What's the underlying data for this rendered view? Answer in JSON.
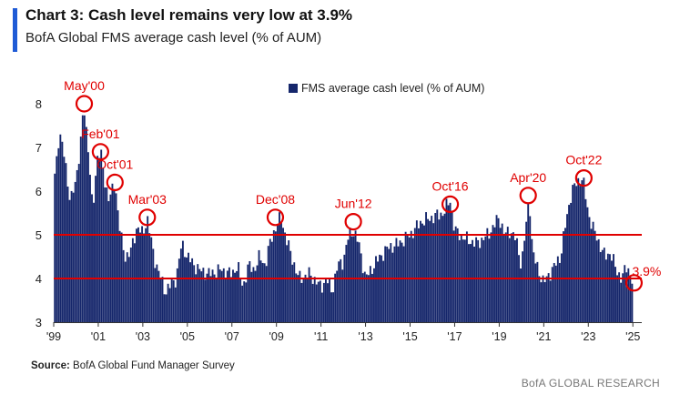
{
  "header": {
    "title": "Chart 3: Cash level remains very low at 3.9%",
    "subtitle": "BofA Global FMS average cash level (% of AUM)"
  },
  "footer": {
    "source_label": "Source:",
    "source_text": "BofA Global Fund Manager Survey",
    "brand": "BofA GLOBAL RESEARCH"
  },
  "colors": {
    "bar": "#15266b",
    "reference_line": "#e00000",
    "annotation": "#e00000",
    "accent": "#1f5bd6"
  },
  "chart_data": {
    "type": "bar",
    "title": "Chart 3: Cash level remains very low at 3.9%",
    "subtitle": "BofA Global FMS average cash level (% of AUM)",
    "legend": {
      "label": "FMS average cash level (% of AUM)",
      "position": "top-center"
    },
    "xlabel": "",
    "ylabel": "",
    "ylim": [
      3,
      8.5
    ],
    "yticks": [
      3,
      4,
      5,
      6,
      7,
      8
    ],
    "xlim": [
      1999.0,
      2025.4
    ],
    "xticks": [
      {
        "label": "'99",
        "x": 1999.0
      },
      {
        "label": "'01",
        "x": 2001.0
      },
      {
        "label": "'03",
        "x": 2003.0
      },
      {
        "label": "'05",
        "x": 2005.0
      },
      {
        "label": "'07",
        "x": 2007.0
      },
      {
        "label": "'09",
        "x": 2009.0
      },
      {
        "label": "'11",
        "x": 2011.0
      },
      {
        "label": "'13",
        "x": 2013.0
      },
      {
        "label": "'15",
        "x": 2015.0
      },
      {
        "label": "'17",
        "x": 2017.0
      },
      {
        "label": "'19",
        "x": 2019.0
      },
      {
        "label": "'21",
        "x": 2021.0
      },
      {
        "label": "'23",
        "x": 2023.0
      },
      {
        "label": "'25",
        "x": 2025.0
      }
    ],
    "reference_lines": [
      5.0,
      4.0
    ],
    "anchors": [
      [
        1999.05,
        6.4
      ],
      [
        1999.25,
        7.3
      ],
      [
        1999.5,
        6.8
      ],
      [
        1999.75,
        5.7
      ],
      [
        2000.0,
        6.3
      ],
      [
        2000.2,
        7.0
      ],
      [
        2000.35,
        8.0
      ],
      [
        2000.55,
        7.0
      ],
      [
        2000.75,
        5.5
      ],
      [
        2000.95,
        6.8
      ],
      [
        2001.1,
        6.9
      ],
      [
        2001.3,
        6.2
      ],
      [
        2001.5,
        5.8
      ],
      [
        2001.75,
        6.2
      ],
      [
        2002.0,
        5.0
      ],
      [
        2002.2,
        4.5
      ],
      [
        2002.45,
        4.6
      ],
      [
        2002.75,
        5.2
      ],
      [
        2003.0,
        5.0
      ],
      [
        2003.2,
        5.4
      ],
      [
        2003.5,
        4.5
      ],
      [
        2003.75,
        4.1
      ],
      [
        2004.0,
        3.7
      ],
      [
        2004.5,
        4.0
      ],
      [
        2004.75,
        4.8
      ],
      [
        2005.0,
        4.5
      ],
      [
        2005.5,
        4.2
      ],
      [
        2006.0,
        4.1
      ],
      [
        2006.5,
        4.2
      ],
      [
        2007.0,
        4.1
      ],
      [
        2007.25,
        4.3
      ],
      [
        2007.5,
        3.8
      ],
      [
        2007.75,
        4.3
      ],
      [
        2008.0,
        4.2
      ],
      [
        2008.25,
        4.5
      ],
      [
        2008.5,
        4.3
      ],
      [
        2008.75,
        4.9
      ],
      [
        2009.0,
        5.2
      ],
      [
        2009.2,
        5.4
      ],
      [
        2009.5,
        4.8
      ],
      [
        2010.0,
        4.0
      ],
      [
        2010.5,
        4.1
      ],
      [
        2011.0,
        3.8
      ],
      [
        2011.25,
        4.0
      ],
      [
        2011.5,
        3.7
      ],
      [
        2011.75,
        4.3
      ],
      [
        2012.0,
        4.4
      ],
      [
        2012.25,
        5.0
      ],
      [
        2012.45,
        5.1
      ],
      [
        2012.7,
        4.8
      ],
      [
        2013.0,
        4.0
      ],
      [
        2013.5,
        4.4
      ],
      [
        2014.0,
        4.7
      ],
      [
        2014.5,
        4.8
      ],
      [
        2015.0,
        5.0
      ],
      [
        2015.5,
        5.3
      ],
      [
        2016.0,
        5.4
      ],
      [
        2016.5,
        5.5
      ],
      [
        2016.8,
        5.8
      ],
      [
        2017.0,
        5.1
      ],
      [
        2017.5,
        4.9
      ],
      [
        2018.0,
        4.8
      ],
      [
        2018.5,
        5.0
      ],
      [
        2019.0,
        5.4
      ],
      [
        2019.25,
        5.0
      ],
      [
        2019.5,
        5.1
      ],
      [
        2019.75,
        4.9
      ],
      [
        2020.0,
        4.3
      ],
      [
        2020.25,
        5.4
      ],
      [
        2020.35,
        5.9
      ],
      [
        2020.5,
        4.6
      ],
      [
        2020.75,
        4.2
      ],
      [
        2021.0,
        3.9
      ],
      [
        2021.5,
        4.3
      ],
      [
        2021.75,
        4.5
      ],
      [
        2022.0,
        5.3
      ],
      [
        2022.25,
        6.0
      ],
      [
        2022.5,
        6.2
      ],
      [
        2022.75,
        6.3
      ],
      [
        2023.0,
        5.5
      ],
      [
        2023.25,
        5.1
      ],
      [
        2023.5,
        4.8
      ],
      [
        2023.75,
        4.5
      ],
      [
        2024.0,
        4.6
      ],
      [
        2024.25,
        4.2
      ],
      [
        2024.5,
        4.0
      ],
      [
        2024.75,
        4.3
      ],
      [
        2025.0,
        3.9
      ]
    ],
    "annotations": [
      {
        "label": "May'00",
        "x": 2000.37,
        "y": 8.0
      },
      {
        "label": "Feb'01",
        "x": 2001.1,
        "y": 6.9
      },
      {
        "label": "Oct'01",
        "x": 2001.75,
        "y": 6.2
      },
      {
        "label": "Mar'03",
        "x": 2003.2,
        "y": 5.4
      },
      {
        "label": "Dec'08",
        "x": 2008.95,
        "y": 5.4
      },
      {
        "label": "Jun'12",
        "x": 2012.45,
        "y": 5.3
      },
      {
        "label": "Oct'16",
        "x": 2016.8,
        "y": 5.7
      },
      {
        "label": "Apr'20",
        "x": 2020.3,
        "y": 5.9
      },
      {
        "label": "Oct'22",
        "x": 2022.8,
        "y": 6.3
      },
      {
        "label": "3.9%",
        "x": 2025.05,
        "y": 3.9
      }
    ]
  }
}
